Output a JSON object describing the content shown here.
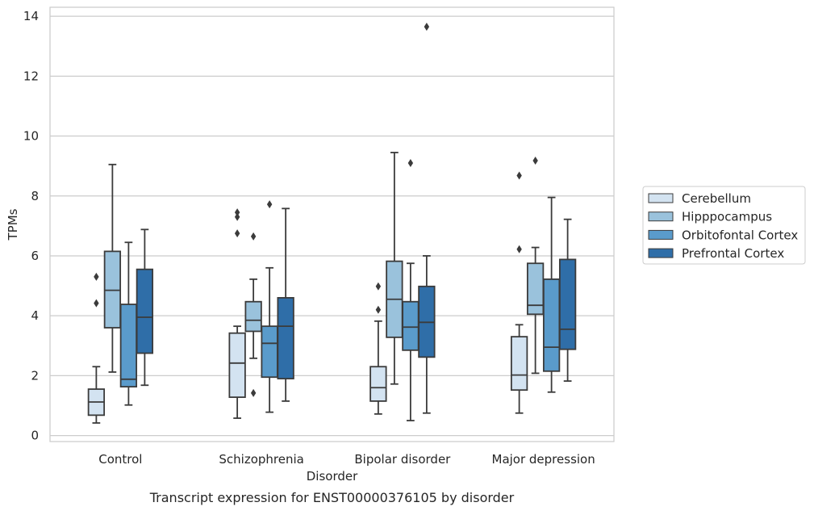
{
  "chart_data": {
    "type": "box",
    "title": "",
    "xlabel": "Disorder",
    "ylabel": "TPMs",
    "caption": "Transcript expression for ENST00000376105 by disorder",
    "ylim": [
      -0.2,
      14.3
    ],
    "yticks": [
      0,
      2,
      4,
      6,
      8,
      10,
      12,
      14
    ],
    "grid": true,
    "legend_position": "right, outside plot",
    "categories": [
      "Control",
      "Schizophrenia",
      "Bipolar disorder",
      "Major depression"
    ],
    "series": [
      {
        "name": "Cerebellum",
        "color": "#d3e3f1",
        "boxes": [
          {
            "whisker_low": 0.42,
            "q1": 0.68,
            "median": 1.12,
            "q3": 1.55,
            "whisker_high": 2.3,
            "outliers": [
              4.42,
              5.3
            ]
          },
          {
            "whisker_low": 0.58,
            "q1": 1.28,
            "median": 2.42,
            "q3": 3.42,
            "whisker_high": 3.65,
            "outliers": [
              6.75,
              7.3,
              7.45
            ]
          },
          {
            "whisker_low": 0.72,
            "q1": 1.15,
            "median": 1.6,
            "q3": 2.3,
            "whisker_high": 3.82,
            "outliers": [
              4.2,
              4.98
            ]
          },
          {
            "whisker_low": 0.75,
            "q1": 1.52,
            "median": 2.02,
            "q3": 3.3,
            "whisker_high": 3.7,
            "outliers": [
              6.22,
              8.68
            ]
          }
        ]
      },
      {
        "name": "Hipppocampus",
        "color": "#9ac2dc",
        "boxes": [
          {
            "whisker_low": 2.12,
            "q1": 3.6,
            "median": 4.85,
            "q3": 6.15,
            "whisker_high": 9.05,
            "outliers": []
          },
          {
            "whisker_low": 2.58,
            "q1": 3.48,
            "median": 3.85,
            "q3": 4.47,
            "whisker_high": 5.22,
            "outliers": [
              1.42,
              6.65
            ]
          },
          {
            "whisker_low": 1.72,
            "q1": 3.28,
            "median": 4.55,
            "q3": 5.82,
            "whisker_high": 9.45,
            "outliers": []
          },
          {
            "whisker_low": 2.08,
            "q1": 4.05,
            "median": 4.35,
            "q3": 5.75,
            "whisker_high": 6.28,
            "outliers": [
              9.18
            ]
          }
        ]
      },
      {
        "name": "Orbitofontal Cortex",
        "color": "#5a9bcb",
        "boxes": [
          {
            "whisker_low": 1.02,
            "q1": 1.63,
            "median": 1.88,
            "q3": 4.38,
            "whisker_high": 6.45,
            "outliers": []
          },
          {
            "whisker_low": 0.78,
            "q1": 1.95,
            "median": 3.08,
            "q3": 3.65,
            "whisker_high": 5.6,
            "outliers": [
              7.72
            ]
          },
          {
            "whisker_low": 0.5,
            "q1": 2.85,
            "median": 3.62,
            "q3": 4.47,
            "whisker_high": 5.75,
            "outliers": [
              9.1
            ]
          },
          {
            "whisker_low": 1.45,
            "q1": 2.15,
            "median": 2.95,
            "q3": 5.22,
            "whisker_high": 7.95,
            "outliers": []
          }
        ]
      },
      {
        "name": "Prefrontal Cortex",
        "color": "#2f6ea8",
        "boxes": [
          {
            "whisker_low": 1.68,
            "q1": 2.75,
            "median": 3.95,
            "q3": 5.55,
            "whisker_high": 6.88,
            "outliers": []
          },
          {
            "whisker_low": 1.15,
            "q1": 1.9,
            "median": 3.65,
            "q3": 4.6,
            "whisker_high": 7.58,
            "outliers": []
          },
          {
            "whisker_low": 0.75,
            "q1": 2.62,
            "median": 3.78,
            "q3": 4.98,
            "whisker_high": 6.0,
            "outliers": [
              13.65
            ]
          },
          {
            "whisker_low": 1.82,
            "q1": 2.88,
            "median": 3.55,
            "q3": 5.88,
            "whisker_high": 7.22,
            "outliers": []
          }
        ]
      }
    ]
  }
}
